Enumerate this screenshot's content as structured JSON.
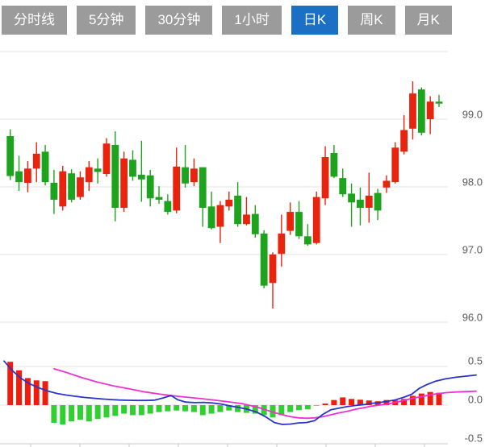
{
  "toolbar": {
    "tabs": [
      {
        "id": "time-line",
        "label": "分时线",
        "active": false
      },
      {
        "id": "5min",
        "label": "5分钟",
        "active": false
      },
      {
        "id": "30min",
        "label": "30分钟",
        "active": false
      },
      {
        "id": "1hour",
        "label": "1小时",
        "active": false
      },
      {
        "id": "daily-k",
        "label": "日K",
        "active": true
      },
      {
        "id": "weekly-k",
        "label": "周K",
        "active": false
      },
      {
        "id": "monthly-k",
        "label": "月K",
        "active": false
      }
    ]
  },
  "colors": {
    "up": "#e8240e",
    "down": "#1ea31e",
    "hist_up": "#ee1d0d",
    "hist_down": "#30d030",
    "dif": "#2a35c8",
    "dea": "#ef30d3",
    "grid": "#e3e3e3",
    "axis": "#c8c8c8",
    "label": "#5a5a5a",
    "tab_bg": "#9b9b9b",
    "tab_active_bg": "#1b70c6",
    "tab_text": "#ffffff"
  },
  "chart_data": {
    "type": "candlestick",
    "title": "",
    "legend": "none",
    "grid": true,
    "price_panel": {
      "ylabel": "",
      "ylim": [
        95.9,
        100.1
      ],
      "yticks": [
        {
          "value": 100.0,
          "label": ""
        },
        {
          "value": 99.0,
          "label": "99.0"
        },
        {
          "value": 98.0,
          "label": "98.0"
        },
        {
          "value": 97.0,
          "label": "97.0"
        },
        {
          "value": 96.0,
          "label": "96.0"
        }
      ],
      "candles_columns": [
        "open",
        "high",
        "low",
        "close"
      ],
      "candles": [
        [
          98.75,
          98.85,
          98.1,
          98.16
        ],
        [
          98.23,
          98.46,
          97.94,
          98.07
        ],
        [
          98.06,
          98.38,
          97.92,
          98.27
        ],
        [
          98.27,
          98.66,
          98.07,
          98.49
        ],
        [
          98.52,
          98.62,
          98.02,
          98.07
        ],
        [
          98.06,
          98.25,
          97.6,
          97.81
        ],
        [
          97.71,
          98.31,
          97.65,
          98.23
        ],
        [
          98.2,
          98.26,
          97.77,
          97.81
        ],
        [
          97.85,
          98.23,
          97.81,
          98.14
        ],
        [
          98.07,
          98.38,
          97.94,
          98.29
        ],
        [
          98.27,
          98.42,
          98.05,
          98.22
        ],
        [
          98.19,
          98.72,
          98.15,
          98.64
        ],
        [
          98.62,
          98.82,
          97.49,
          97.69
        ],
        [
          97.69,
          98.52,
          97.63,
          98.42
        ],
        [
          98.4,
          98.54,
          98.09,
          98.15
        ],
        [
          98.18,
          98.68,
          97.78,
          98.11
        ],
        [
          98.17,
          98.25,
          97.71,
          97.83
        ],
        [
          97.85,
          98.01,
          97.75,
          97.81
        ],
        [
          97.79,
          97.89,
          97.59,
          97.63
        ],
        [
          97.65,
          98.58,
          97.61,
          98.3
        ],
        [
          98.29,
          98.62,
          97.99,
          98.05
        ],
        [
          98.07,
          98.42,
          98.01,
          98.27
        ],
        [
          98.29,
          98.29,
          97.41,
          97.69
        ],
        [
          97.71,
          97.93,
          97.37,
          97.39
        ],
        [
          97.41,
          97.79,
          97.17,
          97.73
        ],
        [
          97.71,
          97.93,
          97.65,
          97.81
        ],
        [
          97.87,
          98.07,
          97.41,
          97.45
        ],
        [
          97.45,
          97.85,
          97.43,
          97.59
        ],
        [
          97.6,
          97.73,
          97.25,
          97.3
        ],
        [
          97.31,
          97.36,
          96.5,
          96.54
        ],
        [
          96.58,
          97.03,
          96.2,
          97.0
        ],
        [
          97.01,
          97.59,
          96.82,
          97.31
        ],
        [
          97.35,
          97.77,
          97.29,
          97.63
        ],
        [
          97.63,
          97.79,
          97.23,
          97.27
        ],
        [
          97.27,
          97.45,
          97.13,
          97.15
        ],
        [
          97.17,
          97.93,
          97.15,
          97.85
        ],
        [
          97.83,
          98.6,
          97.73,
          98.44
        ],
        [
          98.5,
          98.62,
          98.13,
          98.15
        ],
        [
          98.13,
          98.27,
          97.85,
          97.89
        ],
        [
          97.9,
          98.05,
          97.41,
          97.77
        ],
        [
          97.81,
          97.99,
          97.43,
          97.69
        ],
        [
          97.69,
          98.21,
          97.47,
          97.87
        ],
        [
          97.91,
          97.97,
          97.51,
          97.65
        ],
        [
          97.99,
          98.17,
          97.91,
          98.09
        ],
        [
          98.07,
          98.66,
          98.05,
          98.58
        ],
        [
          98.52,
          99.06,
          98.48,
          98.84
        ],
        [
          98.86,
          99.56,
          98.7,
          99.38
        ],
        [
          99.44,
          99.47,
          98.76,
          98.8
        ],
        [
          99.0,
          99.34,
          98.78,
          99.26
        ],
        [
          99.26,
          99.36,
          99.18,
          99.23
        ]
      ]
    },
    "macd_panel": {
      "ylim": [
        -0.5,
        0.5
      ],
      "yticks": [
        {
          "value": 0.5,
          "label": "0.5"
        },
        {
          "value": 0.0,
          "label": "0.0"
        },
        {
          "value": -0.5,
          "label": "-0.5"
        }
      ],
      "histogram": [
        0.56,
        0.45,
        0.35,
        0.32,
        0.31,
        -0.23,
        -0.25,
        -0.21,
        -0.19,
        -0.21,
        -0.18,
        -0.16,
        -0.14,
        -0.11,
        -0.13,
        -0.13,
        -0.11,
        -0.09,
        -0.08,
        -0.07,
        -0.08,
        -0.09,
        -0.13,
        -0.11,
        -0.09,
        -0.07,
        -0.09,
        -0.1,
        -0.11,
        -0.13,
        -0.16,
        -0.13,
        -0.09,
        -0.065,
        -0.055,
        0.0,
        0.02,
        0.066,
        0.1,
        0.08,
        0.07,
        0.06,
        0.05,
        0.066,
        0.06,
        0.08,
        0.12,
        0.15,
        0.17,
        0.16
      ],
      "dif_line": [
        [
          5,
          0.57
        ],
        [
          16,
          0.44
        ],
        [
          27,
          0.34
        ],
        [
          38,
          0.27
        ],
        [
          49,
          0.22
        ],
        [
          60,
          0.18
        ],
        [
          71,
          0.15
        ],
        [
          82,
          0.13
        ],
        [
          93,
          0.115
        ],
        [
          104,
          0.1
        ],
        [
          115,
          0.09
        ],
        [
          126,
          0.08
        ],
        [
          137,
          0.072
        ],
        [
          148,
          0.066
        ],
        [
          159,
          0.062
        ],
        [
          170,
          0.06
        ],
        [
          181,
          0.06
        ],
        [
          192,
          0.065
        ],
        [
          203,
          0.095
        ],
        [
          212,
          0.125
        ],
        [
          220,
          0.07
        ],
        [
          230,
          0.04
        ],
        [
          241,
          0.032
        ],
        [
          252,
          0.035
        ],
        [
          263,
          0.028
        ],
        [
          274,
          0.015
        ],
        [
          285,
          -0.01
        ],
        [
          296,
          -0.03
        ],
        [
          307,
          -0.055
        ],
        [
          318,
          -0.09
        ],
        [
          329,
          -0.15
        ],
        [
          340,
          -0.225
        ],
        [
          350,
          -0.25
        ],
        [
          360,
          -0.245
        ],
        [
          370,
          -0.23
        ],
        [
          380,
          -0.225
        ],
        [
          390,
          -0.2
        ],
        [
          400,
          -0.12
        ],
        [
          410,
          -0.06
        ],
        [
          420,
          -0.04
        ],
        [
          430,
          -0.02
        ],
        [
          440,
          -0.005
        ],
        [
          450,
          0.005
        ],
        [
          460,
          0.022
        ],
        [
          470,
          0.032
        ],
        [
          480,
          0.05
        ],
        [
          490,
          0.068
        ],
        [
          500,
          0.1
        ],
        [
          510,
          0.14
        ],
        [
          520,
          0.22
        ],
        [
          530,
          0.27
        ],
        [
          540,
          0.31
        ],
        [
          552,
          0.34
        ],
        [
          565,
          0.36
        ],
        [
          578,
          0.375
        ],
        [
          590,
          0.39
        ]
      ],
      "dea_line": [
        [
          67,
          0.47
        ],
        [
          80,
          0.43
        ],
        [
          100,
          0.36
        ],
        [
          120,
          0.3
        ],
        [
          140,
          0.25
        ],
        [
          160,
          0.21
        ],
        [
          180,
          0.17
        ],
        [
          200,
          0.14
        ],
        [
          220,
          0.115
        ],
        [
          240,
          0.094
        ],
        [
          260,
          0.072
        ],
        [
          280,
          0.047
        ],
        [
          300,
          0.02
        ],
        [
          320,
          -0.03
        ],
        [
          335,
          -0.08
        ],
        [
          350,
          -0.125
        ],
        [
          360,
          -0.15
        ],
        [
          370,
          -0.165
        ],
        [
          380,
          -0.17
        ],
        [
          390,
          -0.165
        ],
        [
          400,
          -0.15
        ],
        [
          410,
          -0.125
        ],
        [
          420,
          -0.1
        ],
        [
          430,
          -0.08
        ],
        [
          440,
          -0.055
        ],
        [
          450,
          -0.035
        ],
        [
          460,
          -0.015
        ],
        [
          470,
          0.0
        ],
        [
          480,
          0.015
        ],
        [
          490,
          0.035
        ],
        [
          500,
          0.06
        ],
        [
          510,
          0.085
        ],
        [
          520,
          0.105
        ],
        [
          530,
          0.125
        ],
        [
          540,
          0.145
        ],
        [
          552,
          0.16
        ],
        [
          565,
          0.17
        ],
        [
          578,
          0.175
        ],
        [
          590,
          0.18
        ]
      ]
    },
    "x_axis": {
      "tick_positions": [
        38,
        99,
        160,
        221,
        282,
        343,
        404,
        465,
        526
      ]
    }
  }
}
